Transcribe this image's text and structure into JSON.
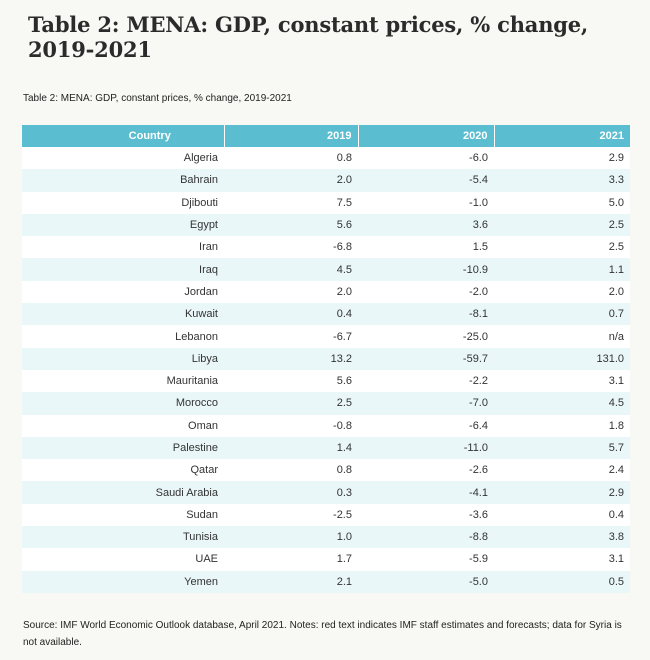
{
  "page": {
    "title": "Table 2: MENA: GDP, constant prices, % change, 2019-2021",
    "caption": "Table 2: MENA: GDP, constant prices, % change, 2019-2021",
    "source": "Source: IMF World Economic Outlook database, April 2021. Notes: red text indicates IMF staff estimates and forecasts; data for Syria is not available."
  },
  "table": {
    "headers": [
      "Country",
      "2019",
      "2020",
      "2021"
    ],
    "rows": [
      [
        "Algeria",
        "0.8",
        "-6.0",
        "2.9"
      ],
      [
        "Bahrain",
        "2.0",
        "-5.4",
        "3.3"
      ],
      [
        "Djibouti",
        "7.5",
        "-1.0",
        "5.0"
      ],
      [
        "Egypt",
        "5.6",
        "3.6",
        "2.5"
      ],
      [
        "Iran",
        "-6.8",
        "1.5",
        "2.5"
      ],
      [
        "Iraq",
        "4.5",
        "-10.9",
        "1.1"
      ],
      [
        "Jordan",
        "2.0",
        "-2.0",
        "2.0"
      ],
      [
        "Kuwait",
        "0.4",
        "-8.1",
        "0.7"
      ],
      [
        "Lebanon",
        "-6.7",
        "-25.0",
        "n/a"
      ],
      [
        "Libya",
        "13.2",
        "-59.7",
        "131.0"
      ],
      [
        "Mauritania",
        "5.6",
        "-2.2",
        "3.1"
      ],
      [
        "Morocco",
        "2.5",
        "-7.0",
        "4.5"
      ],
      [
        "Oman",
        "-0.8",
        "-6.4",
        "1.8"
      ],
      [
        "Palestine",
        "1.4",
        "-11.0",
        "5.7"
      ],
      [
        "Qatar",
        "0.8",
        "-2.6",
        "2.4"
      ],
      [
        "Saudi Arabia",
        "0.3",
        "-4.1",
        "2.9"
      ],
      [
        "Sudan",
        "-2.5",
        "-3.6",
        "0.4"
      ],
      [
        "Tunisia",
        "1.0",
        "-8.8",
        "3.8"
      ],
      [
        "UAE",
        "1.7",
        "-5.9",
        "3.1"
      ],
      [
        "Yemen",
        "2.1",
        "-5.0",
        "0.5"
      ]
    ]
  },
  "colors": {
    "header_bg": "#5bbdd0",
    "stripe_bg": "#eaf7f9",
    "row_bg": "#ffffff"
  }
}
